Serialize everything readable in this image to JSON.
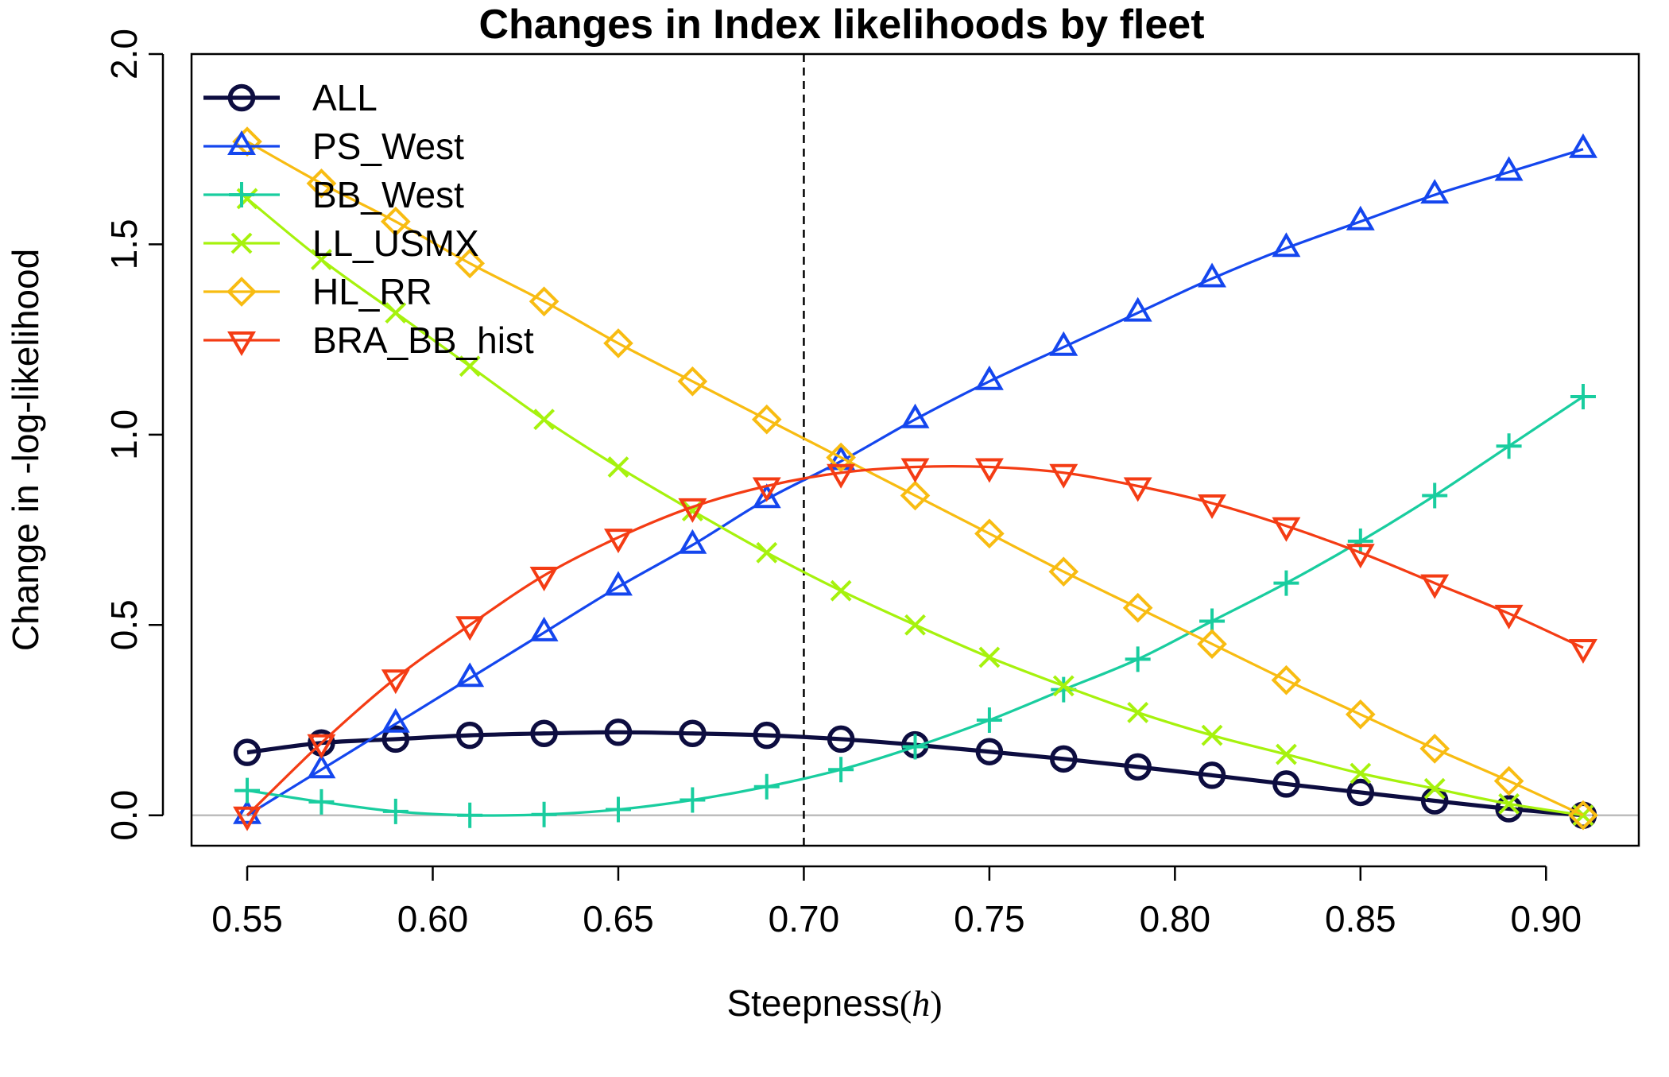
{
  "chart_data": {
    "type": "line",
    "title": "Changes in Index likelihoods by fleet",
    "xlabel": "Steepness",
    "xlabel_symbol": "h",
    "ylabel": "Change in -log-likelihood",
    "xlim": [
      0.535,
      0.925
    ],
    "ylim": [
      -0.08,
      2.0
    ],
    "x": [
      0.55,
      0.57,
      0.59,
      0.61,
      0.63,
      0.65,
      0.67,
      0.69,
      0.71,
      0.73,
      0.75,
      0.77,
      0.79,
      0.81,
      0.83,
      0.85,
      0.87,
      0.89,
      0.91
    ],
    "x_ticks": [
      "0.55",
      "0.60",
      "0.65",
      "0.70",
      "0.75",
      "0.80",
      "0.85",
      "0.90"
    ],
    "y_ticks": [
      "0.0",
      "0.5",
      "1.0",
      "1.5",
      "2.0"
    ],
    "reference_vline": 0.7,
    "zero_line": 0.0,
    "legend_position": "top-left",
    "series": [
      {
        "name": "ALL",
        "color": "#0d0d40",
        "marker": "circle",
        "line_width": 4,
        "values": [
          0.165,
          0.19,
          0.2,
          0.21,
          0.215,
          0.218,
          0.215,
          0.21,
          0.2,
          0.185,
          0.167,
          0.148,
          0.127,
          0.105,
          0.082,
          0.06,
          0.038,
          0.017,
          0.0
        ]
      },
      {
        "name": "PS_West",
        "color": "#1446ee",
        "marker": "triangle-up",
        "line_width": 2.5,
        "values": [
          0.0,
          0.12,
          0.24,
          0.36,
          0.48,
          0.6,
          0.71,
          0.83,
          0.93,
          1.04,
          1.14,
          1.23,
          1.32,
          1.41,
          1.49,
          1.56,
          1.63,
          1.69,
          1.75
        ]
      },
      {
        "name": "BB_West",
        "color": "#19cd9f",
        "marker": "plus",
        "line_width": 2.5,
        "values": [
          0.065,
          0.035,
          0.01,
          0.0,
          0.002,
          0.015,
          0.04,
          0.075,
          0.12,
          0.18,
          0.25,
          0.33,
          0.41,
          0.51,
          0.61,
          0.72,
          0.84,
          0.97,
          1.1
        ]
      },
      {
        "name": "LL_USMX",
        "color": "#a6f20d",
        "marker": "x",
        "line_width": 2.5,
        "values": [
          1.62,
          1.46,
          1.32,
          1.18,
          1.04,
          0.915,
          0.8,
          0.69,
          0.59,
          0.5,
          0.415,
          0.34,
          0.27,
          0.21,
          0.16,
          0.11,
          0.07,
          0.03,
          0.0
        ]
      },
      {
        "name": "HL_RR",
        "color": "#f8bc12",
        "marker": "diamond",
        "line_width": 2.5,
        "values": [
          1.77,
          1.66,
          1.56,
          1.45,
          1.35,
          1.24,
          1.14,
          1.04,
          0.94,
          0.84,
          0.74,
          0.64,
          0.545,
          0.45,
          0.355,
          0.265,
          0.175,
          0.09,
          0.0
        ]
      },
      {
        "name": "BRA_BB_hist",
        "color": "#f43c14",
        "marker": "triangle-down",
        "line_width": 2.5,
        "values": [
          0.0,
          0.19,
          0.36,
          0.5,
          0.63,
          0.73,
          0.81,
          0.865,
          0.9,
          0.915,
          0.915,
          0.9,
          0.865,
          0.82,
          0.76,
          0.69,
          0.61,
          0.53,
          0.44
        ]
      }
    ]
  }
}
